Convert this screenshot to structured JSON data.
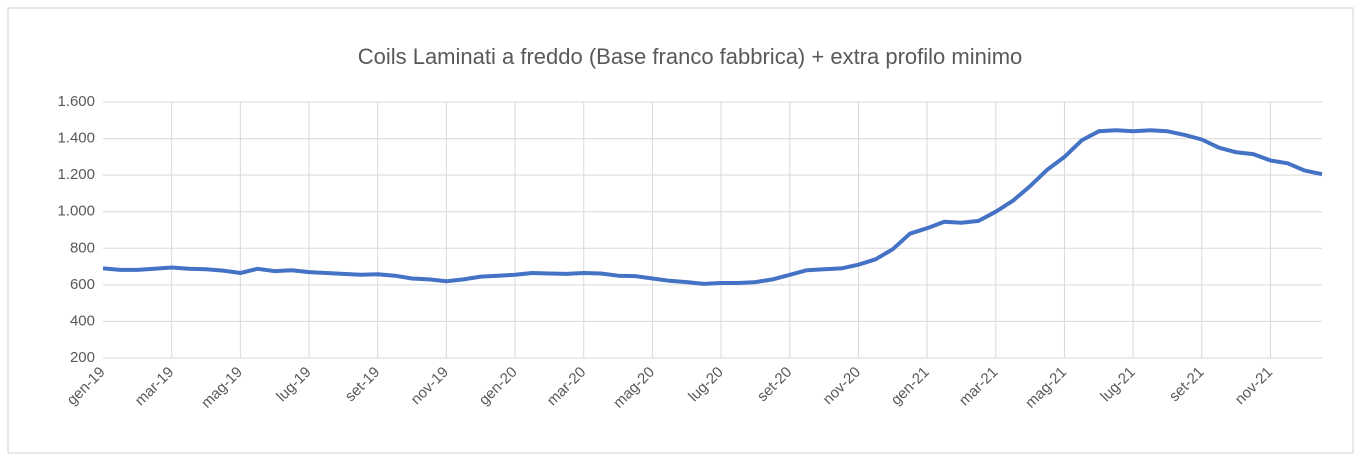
{
  "chart_data": {
    "type": "line",
    "title": "Coils Laminati a freddo (Base franco fabbrica) + extra profilo minimo",
    "categories": [
      "gen-19",
      null,
      null,
      null,
      "mar-19",
      null,
      null,
      null,
      "mag-19",
      null,
      null,
      null,
      "lug-19",
      null,
      null,
      null,
      "set-19",
      null,
      null,
      null,
      "nov-19",
      null,
      null,
      null,
      "gen-20",
      null,
      null,
      null,
      "mar-20",
      null,
      null,
      null,
      "mag-20",
      null,
      null,
      null,
      "lug-20",
      null,
      null,
      null,
      "set-20",
      null,
      null,
      null,
      "nov-20",
      null,
      null,
      null,
      "gen-21",
      null,
      null,
      null,
      "mar-21",
      null,
      null,
      null,
      "mag-21",
      null,
      null,
      null,
      "lug-21",
      null,
      null,
      null,
      "set-21",
      null,
      null,
      null,
      "nov-21",
      null,
      null,
      null
    ],
    "series": [
      {
        "name": "Coils Laminati a freddo",
        "color": "#4472c4",
        "values": [
          690,
          682,
          682,
          688,
          695,
          688,
          685,
          678,
          665,
          688,
          675,
          680,
          670,
          665,
          660,
          655,
          658,
          650,
          635,
          630,
          620,
          630,
          645,
          650,
          655,
          665,
          662,
          660,
          665,
          662,
          650,
          648,
          635,
          622,
          615,
          605,
          610,
          610,
          615,
          630,
          655,
          680,
          685,
          690,
          710,
          740,
          795,
          880,
          910,
          945,
          940,
          950,
          1000,
          1060,
          1140,
          1230,
          1300,
          1390,
          1440,
          1445,
          1440,
          1445,
          1440,
          1420,
          1395,
          1350,
          1325,
          1315,
          1280,
          1265,
          1225,
          1205
        ]
      }
    ],
    "ylim": [
      200,
      1600
    ],
    "yticks": [
      {
        "value": 200,
        "label": "200"
      },
      {
        "value": 400,
        "label": "400"
      },
      {
        "value": 600,
        "label": "600"
      },
      {
        "value": 800,
        "label": "800"
      },
      {
        "value": 1000,
        "label": "1.000"
      },
      {
        "value": 1200,
        "label": "1.200"
      },
      {
        "value": 1400,
        "label": "1.400"
      },
      {
        "value": 1600,
        "label": "1.600"
      }
    ],
    "grid": true
  }
}
